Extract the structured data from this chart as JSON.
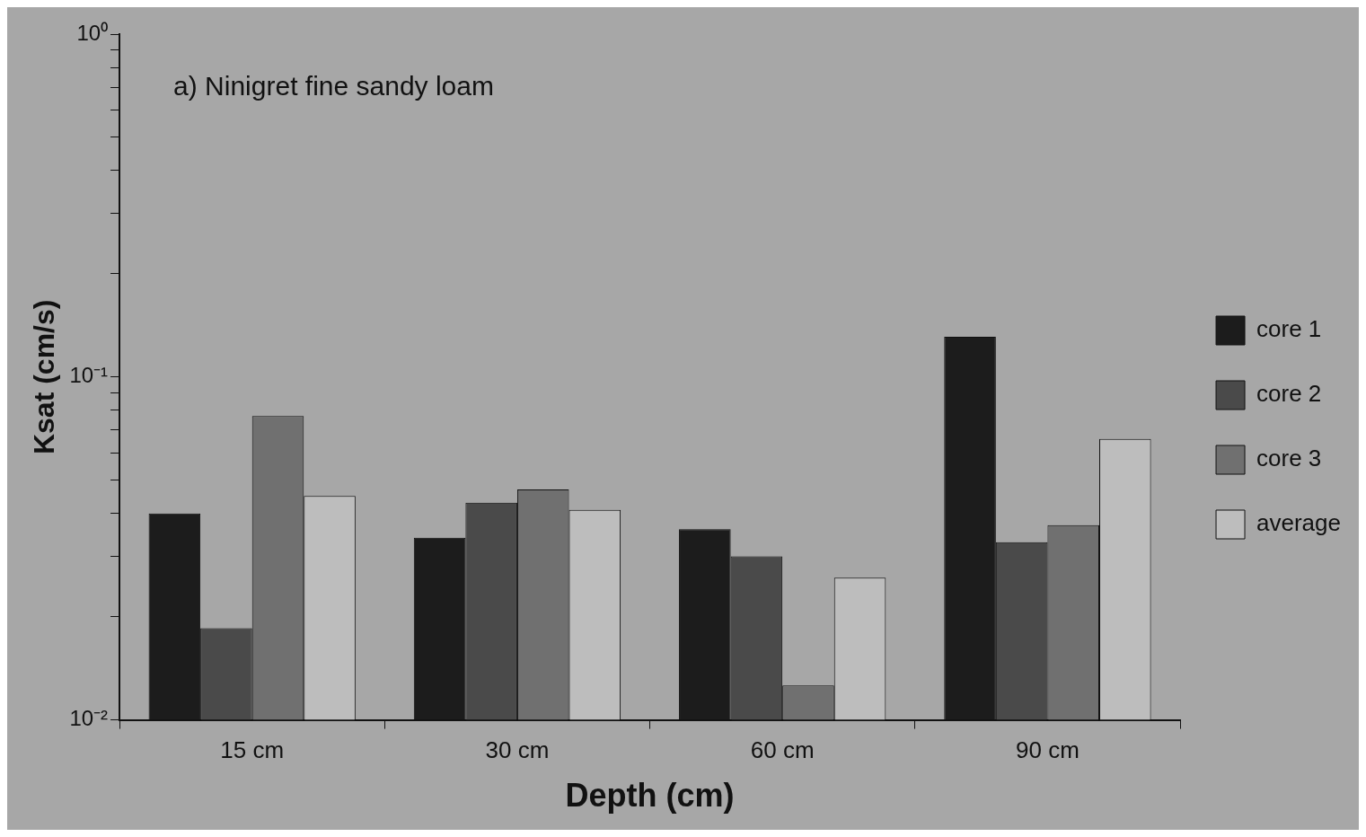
{
  "chart_data": {
    "type": "bar",
    "title": "a) Ninigret fine sandy loam",
    "xlabel": "Depth (cm)",
    "ylabel": "Ksat (cm/s)",
    "categories": [
      "15 cm",
      "30 cm",
      "60 cm",
      "90 cm"
    ],
    "series": [
      {
        "name": "core 1",
        "color": "#1c1c1c",
        "values": [
          0.04,
          0.034,
          0.036,
          0.131
        ]
      },
      {
        "name": "core 2",
        "color": "#4a4a4a",
        "values": [
          0.0185,
          0.043,
          0.03,
          0.033
        ]
      },
      {
        "name": "core 3",
        "color": "#707070",
        "values": [
          0.077,
          0.047,
          0.0126,
          0.037
        ]
      },
      {
        "name": "average",
        "color": "#bdbdbd",
        "values": [
          0.045,
          0.041,
          0.026,
          0.066
        ]
      }
    ],
    "log": "y",
    "ylim": [
      0.01,
      1
    ],
    "yticks": [
      {
        "value": 0.01,
        "label": "10⁻²"
      },
      {
        "value": 0.02,
        "label": null
      },
      {
        "value": 0.03,
        "label": null
      },
      {
        "value": 0.04,
        "label": null
      },
      {
        "value": 0.05,
        "label": null
      },
      {
        "value": 0.06,
        "label": null
      },
      {
        "value": 0.07,
        "label": null
      },
      {
        "value": 0.08,
        "label": null
      },
      {
        "value": 0.09,
        "label": null
      },
      {
        "value": 0.1,
        "label": "10⁻¹"
      },
      {
        "value": 0.2,
        "label": null
      },
      {
        "value": 0.3,
        "label": null
      },
      {
        "value": 0.4,
        "label": null
      },
      {
        "value": 0.5,
        "label": null
      },
      {
        "value": 0.6,
        "label": null
      },
      {
        "value": 0.7,
        "label": null
      },
      {
        "value": 0.8,
        "label": null
      },
      {
        "value": 0.9,
        "label": null
      },
      {
        "value": 1,
        "label": "10⁰"
      }
    ],
    "grid": false,
    "legend": "right"
  }
}
